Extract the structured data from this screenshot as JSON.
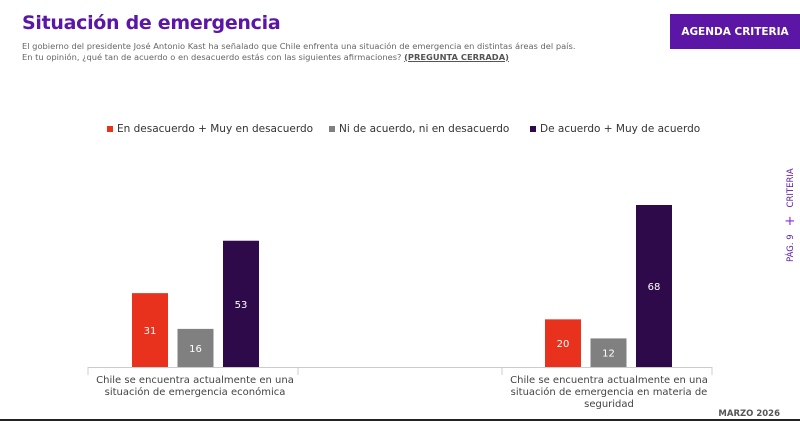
{
  "header": {
    "title": "Situación de emergencia",
    "subtitle": "El gobierno del presidente José Antonio Kast ha señalado que Chile enfrenta una situación de emergencia en distintas áreas del país. En tu opinión, ¿qué tan de acuerdo o en desacuerdo estás con las siguientes afirmaciones? ",
    "subtitle_tag": "(PREGUNTA CERRADA)",
    "button": "AGENDA CRITERIA"
  },
  "side": {
    "page": "PÁG. 9",
    "plus": "+",
    "brand": "CRITERIA"
  },
  "footer": {
    "date": "MARZO 2026"
  },
  "chart_data": {
    "type": "bar",
    "categories": [
      "Chile se encuentra actualmente en una situación de emergencia económica",
      "Chile se encuentra actualmente en una situación de emergencia en materia de seguridad"
    ],
    "series": [
      {
        "name": "En desacuerdo + Muy en desacuerdo",
        "color": "#e8321e",
        "values": [
          31,
          20
        ]
      },
      {
        "name": "Ni de acuerdo, ni en desacuerdo",
        "color": "#808080",
        "values": [
          16,
          12
        ]
      },
      {
        "name": "De acuerdo + Muy de acuerdo",
        "color": "#2e0a4a",
        "values": [
          53,
          68
        ]
      }
    ],
    "legend": "top",
    "ylim": [
      0,
      70
    ],
    "grid": false
  }
}
